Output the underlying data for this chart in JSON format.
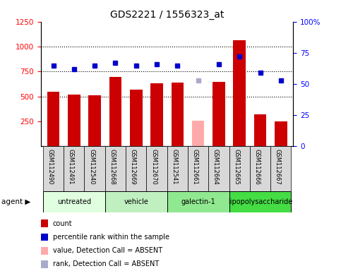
{
  "title": "GDS2221 / 1556323_at",
  "samples": [
    "GSM112490",
    "GSM112491",
    "GSM112540",
    "GSM112668",
    "GSM112669",
    "GSM112670",
    "GSM112541",
    "GSM112661",
    "GSM112664",
    "GSM112665",
    "GSM112666",
    "GSM112667"
  ],
  "count_values": [
    545,
    520,
    510,
    695,
    572,
    630,
    640,
    255,
    645,
    1065,
    320,
    252
  ],
  "count_absent": [
    false,
    false,
    false,
    false,
    false,
    false,
    false,
    true,
    false,
    false,
    false,
    false
  ],
  "percentile_values": [
    65,
    62,
    65,
    67,
    65,
    66,
    65,
    53,
    66,
    72,
    59,
    53
  ],
  "percentile_absent": [
    false,
    false,
    false,
    false,
    false,
    false,
    false,
    true,
    false,
    false,
    false,
    false
  ],
  "bar_color_normal": "#cc0000",
  "bar_color_absent": "#ffaaaa",
  "dot_color_normal": "#0000cc",
  "dot_color_absent": "#aaaacc",
  "ylim_left": [
    0,
    1250
  ],
  "ylim_right": [
    0,
    100
  ],
  "yticks_left": [
    250,
    500,
    750,
    1000,
    1250
  ],
  "yticks_right": [
    0,
    25,
    50,
    75,
    100
  ],
  "agent_groups": [
    {
      "label": "untreated",
      "start": 0,
      "end": 3,
      "color": "#e0ffe0"
    },
    {
      "label": "vehicle",
      "start": 3,
      "end": 6,
      "color": "#c0f0c0"
    },
    {
      "label": "galectin-1",
      "start": 6,
      "end": 9,
      "color": "#90e890"
    },
    {
      "label": "lipopolysaccharide",
      "start": 9,
      "end": 12,
      "color": "#44dd44"
    }
  ],
  "legend_items": [
    {
      "label": "count",
      "color": "#cc0000"
    },
    {
      "label": "percentile rank within the sample",
      "color": "#0000cc"
    },
    {
      "label": "value, Detection Call = ABSENT",
      "color": "#ffaaaa"
    },
    {
      "label": "rank, Detection Call = ABSENT",
      "color": "#aaaacc"
    }
  ],
  "agent_label": "agent",
  "bar_width": 0.6
}
